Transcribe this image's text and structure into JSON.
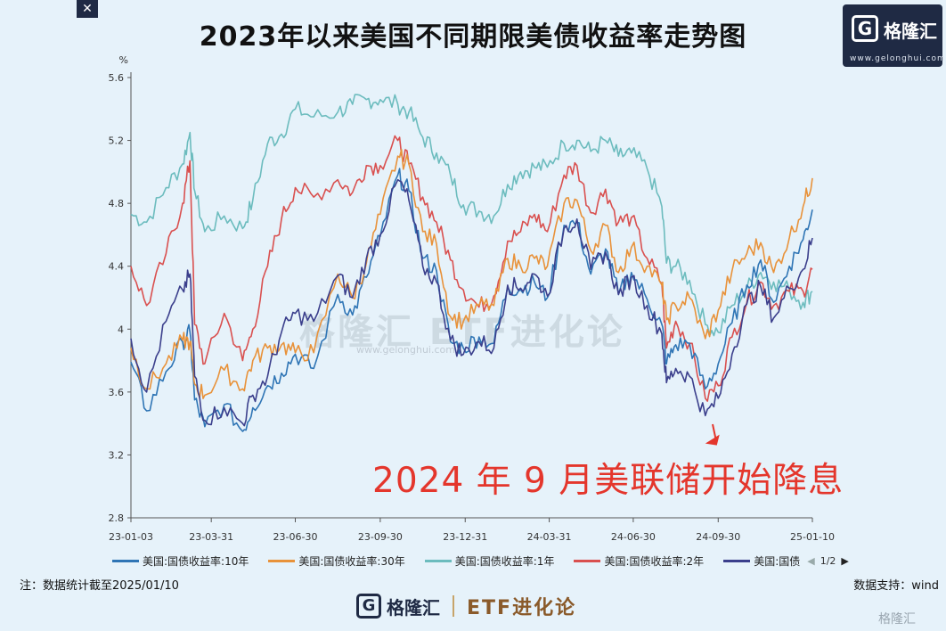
{
  "title": "2023年以来美国不同期限美债收益率走势图",
  "logo": {
    "glyph": "G",
    "name": "格隆汇",
    "url": "www.gelonghui.com"
  },
  "close_label": "✕",
  "annotation": "2024 年 9 月美联储开始降息",
  "note": "注：数据统计截至2025/01/10",
  "support": "数据支持：wind",
  "pager": {
    "text": "1/2",
    "prev": "◀",
    "next": "▶"
  },
  "watermark": {
    "text": "格隆汇 ETF进化论",
    "url": "www.gelonghui.com"
  },
  "footer": {
    "glyph": "G",
    "name": "格隆汇",
    "etf": "ETF进化论"
  },
  "corner_watermark": "格隆汇",
  "chart_data": {
    "type": "line",
    "title": "2023年以来美国不同期限美债收益率走势图",
    "ylabel": "%",
    "ylim": [
      2.8,
      5.6
    ],
    "yticks": [
      "2.8",
      "3.2",
      "3.6",
      "4",
      "4.4",
      "4.8",
      "5.2",
      "5.6"
    ],
    "xticks": [
      "23-01-03",
      "23-03-31",
      "23-06-30",
      "23-09-30",
      "23-12-31",
      "24-03-31",
      "24-06-30",
      "24-09-30",
      "25-01-10"
    ],
    "xrange": [
      "2023-01-03",
      "2025-01-10"
    ],
    "annotation": {
      "text": "2024 年 9 月美联储开始降息",
      "x": "2024-09-16",
      "y": 3.42
    },
    "series": [
      {
        "name": "美国:国债收益率:1年",
        "color": "#6cbcbe",
        "x": [
          "2023-01-03",
          "2023-01-20",
          "2023-02-10",
          "2023-02-28",
          "2023-03-08",
          "2023-03-13",
          "2023-03-24",
          "2023-04-14",
          "2023-05-04",
          "2023-05-15",
          "2023-05-31",
          "2023-06-15",
          "2023-06-30",
          "2023-07-20",
          "2023-08-15",
          "2023-08-31",
          "2023-09-15",
          "2023-09-30",
          "2023-10-19",
          "2023-10-31",
          "2023-11-15",
          "2023-11-30",
          "2023-12-15",
          "2023-12-29",
          "2024-01-15",
          "2024-01-31",
          "2024-02-15",
          "2024-02-29",
          "2024-03-15",
          "2024-03-29",
          "2024-04-16",
          "2024-04-30",
          "2024-05-15",
          "2024-05-31",
          "2024-06-14",
          "2024-06-28",
          "2024-07-15",
          "2024-07-31",
          "2024-08-05",
          "2024-08-15",
          "2024-08-30",
          "2024-09-16",
          "2024-09-30",
          "2024-10-15",
          "2024-10-31",
          "2024-11-15",
          "2024-11-29",
          "2024-12-16",
          "2024-12-31",
          "2025-01-10"
        ],
        "values": [
          4.73,
          4.68,
          4.9,
          5.05,
          5.25,
          4.88,
          4.62,
          4.72,
          4.64,
          4.82,
          5.18,
          5.24,
          5.4,
          5.35,
          5.38,
          5.43,
          5.46,
          5.46,
          5.43,
          5.38,
          5.22,
          5.12,
          4.98,
          4.79,
          4.75,
          4.72,
          4.92,
          5.0,
          5.03,
          5.03,
          5.18,
          5.2,
          5.13,
          5.2,
          5.1,
          5.12,
          5.02,
          4.78,
          4.42,
          4.4,
          4.31,
          4.03,
          3.98,
          4.15,
          4.26,
          4.36,
          4.3,
          4.25,
          4.17,
          4.24
        ]
      },
      {
        "name": "美国:国债收益率:2年",
        "color": "#d9504f",
        "x": [
          "2023-01-03",
          "2023-01-20",
          "2023-02-10",
          "2023-02-28",
          "2023-03-08",
          "2023-03-13",
          "2023-03-24",
          "2023-04-14",
          "2023-05-04",
          "2023-05-15",
          "2023-05-31",
          "2023-06-15",
          "2023-06-30",
          "2023-07-20",
          "2023-08-15",
          "2023-08-31",
          "2023-09-15",
          "2023-09-30",
          "2023-10-19",
          "2023-10-31",
          "2023-11-15",
          "2023-11-30",
          "2023-12-15",
          "2023-12-29",
          "2024-01-15",
          "2024-01-31",
          "2024-02-15",
          "2024-02-29",
          "2024-03-15",
          "2024-03-29",
          "2024-04-16",
          "2024-04-30",
          "2024-05-15",
          "2024-05-31",
          "2024-06-14",
          "2024-06-28",
          "2024-07-15",
          "2024-07-31",
          "2024-08-05",
          "2024-08-15",
          "2024-08-30",
          "2024-09-16",
          "2024-09-30",
          "2024-10-15",
          "2024-10-31",
          "2024-11-15",
          "2024-11-29",
          "2024-12-16",
          "2024-12-31",
          "2025-01-10"
        ],
        "values": [
          4.4,
          4.15,
          4.48,
          4.8,
          5.07,
          4.03,
          3.78,
          4.1,
          3.8,
          4.0,
          4.4,
          4.7,
          4.9,
          4.84,
          4.95,
          4.87,
          5.04,
          5.04,
          5.2,
          5.05,
          4.84,
          4.68,
          4.44,
          4.25,
          4.14,
          4.21,
          4.56,
          4.62,
          4.73,
          4.62,
          4.98,
          5.04,
          4.74,
          4.89,
          4.68,
          4.71,
          4.45,
          4.29,
          3.88,
          4.05,
          3.91,
          3.56,
          3.64,
          3.95,
          4.17,
          4.3,
          4.15,
          4.24,
          4.24,
          4.38
        ]
      },
      {
        "name": "美国:国债收益率:10年",
        "color": "#2f75b5",
        "x": [
          "2023-01-03",
          "2023-01-20",
          "2023-02-10",
          "2023-02-28",
          "2023-03-08",
          "2023-03-13",
          "2023-03-24",
          "2023-04-14",
          "2023-05-04",
          "2023-05-15",
          "2023-05-31",
          "2023-06-15",
          "2023-06-30",
          "2023-07-20",
          "2023-08-15",
          "2023-08-31",
          "2023-09-15",
          "2023-09-30",
          "2023-10-19",
          "2023-10-31",
          "2023-11-15",
          "2023-11-30",
          "2023-12-15",
          "2023-12-29",
          "2024-01-15",
          "2024-01-31",
          "2024-02-15",
          "2024-02-29",
          "2024-03-15",
          "2024-03-29",
          "2024-04-16",
          "2024-04-30",
          "2024-05-15",
          "2024-05-31",
          "2024-06-14",
          "2024-06-28",
          "2024-07-15",
          "2024-07-31",
          "2024-08-05",
          "2024-08-15",
          "2024-08-30",
          "2024-09-16",
          "2024-09-30",
          "2024-10-15",
          "2024-10-31",
          "2024-11-15",
          "2024-11-29",
          "2024-12-16",
          "2024-12-31",
          "2025-01-10"
        ],
        "values": [
          3.79,
          3.48,
          3.73,
          3.92,
          3.98,
          3.55,
          3.38,
          3.52,
          3.35,
          3.5,
          3.64,
          3.72,
          3.84,
          3.75,
          4.22,
          4.09,
          4.33,
          4.59,
          4.98,
          4.88,
          4.45,
          4.37,
          3.92,
          3.88,
          3.95,
          3.91,
          4.27,
          4.25,
          4.3,
          4.2,
          4.66,
          4.68,
          4.35,
          4.51,
          4.22,
          4.36,
          4.19,
          4.03,
          3.78,
          3.9,
          3.91,
          3.62,
          3.78,
          4.04,
          4.28,
          4.44,
          4.17,
          4.4,
          4.57,
          4.76
        ]
      },
      {
        "name": "美国:国债收益率:30年",
        "color": "#e8923a",
        "x": [
          "2023-01-03",
          "2023-01-20",
          "2023-02-10",
          "2023-02-28",
          "2023-03-08",
          "2023-03-13",
          "2023-03-24",
          "2023-04-14",
          "2023-05-04",
          "2023-05-15",
          "2023-05-31",
          "2023-06-15",
          "2023-06-30",
          "2023-07-20",
          "2023-08-15",
          "2023-08-31",
          "2023-09-15",
          "2023-09-30",
          "2023-10-19",
          "2023-10-31",
          "2023-11-15",
          "2023-11-30",
          "2023-12-15",
          "2023-12-29",
          "2024-01-15",
          "2024-01-31",
          "2024-02-15",
          "2024-02-29",
          "2024-03-15",
          "2024-03-29",
          "2024-04-16",
          "2024-04-30",
          "2024-05-15",
          "2024-05-31",
          "2024-06-14",
          "2024-06-28",
          "2024-07-15",
          "2024-07-31",
          "2024-08-05",
          "2024-08-15",
          "2024-08-30",
          "2024-09-16",
          "2024-09-30",
          "2024-10-15",
          "2024-10-31",
          "2024-11-15",
          "2024-11-29",
          "2024-12-16",
          "2024-12-31",
          "2025-01-10"
        ],
        "values": [
          3.88,
          3.62,
          3.78,
          3.93,
          3.92,
          3.65,
          3.58,
          3.74,
          3.62,
          3.8,
          3.88,
          3.9,
          3.85,
          3.85,
          4.35,
          4.2,
          4.42,
          4.73,
          5.1,
          5.05,
          4.62,
          4.54,
          4.08,
          4.05,
          4.15,
          4.15,
          4.45,
          4.4,
          4.45,
          4.4,
          4.8,
          4.82,
          4.5,
          4.66,
          4.36,
          4.52,
          4.4,
          4.28,
          4.06,
          4.15,
          4.2,
          3.94,
          4.12,
          4.37,
          4.48,
          4.55,
          4.36,
          4.58,
          4.78,
          4.96
        ]
      },
      {
        "name": "美国:国债",
        "color": "#3b3f8c",
        "x": [
          "2023-01-03",
          "2023-01-20",
          "2023-02-10",
          "2023-02-28",
          "2023-03-08",
          "2023-03-13",
          "2023-03-24",
          "2023-04-14",
          "2023-05-04",
          "2023-05-15",
          "2023-05-31",
          "2023-06-15",
          "2023-06-30",
          "2023-07-20",
          "2023-08-15",
          "2023-08-31",
          "2023-09-15",
          "2023-09-30",
          "2023-10-19",
          "2023-10-31",
          "2023-11-15",
          "2023-11-30",
          "2023-12-15",
          "2023-12-29",
          "2024-01-15",
          "2024-01-31",
          "2024-02-15",
          "2024-02-29",
          "2024-03-15",
          "2024-03-29",
          "2024-04-16",
          "2024-04-30",
          "2024-05-15",
          "2024-05-31",
          "2024-06-14",
          "2024-06-28",
          "2024-07-15",
          "2024-07-31",
          "2024-08-05",
          "2024-08-15",
          "2024-08-30",
          "2024-09-16",
          "2024-09-30",
          "2024-10-15",
          "2024-10-31",
          "2024-11-15",
          "2024-11-29",
          "2024-12-16",
          "2024-12-31",
          "2025-01-10"
        ],
        "values": [
          3.94,
          3.6,
          4.05,
          4.25,
          4.35,
          3.7,
          3.42,
          3.5,
          3.4,
          3.58,
          3.7,
          3.98,
          4.1,
          4.05,
          4.34,
          4.2,
          4.45,
          4.6,
          4.95,
          4.82,
          4.4,
          4.3,
          3.93,
          3.84,
          3.92,
          3.88,
          4.28,
          4.26,
          4.35,
          4.21,
          4.64,
          4.7,
          4.38,
          4.49,
          4.22,
          4.33,
          4.15,
          3.97,
          3.66,
          3.75,
          3.7,
          3.45,
          3.56,
          3.84,
          4.16,
          4.27,
          4.07,
          4.26,
          4.38,
          4.58
        ]
      }
    ]
  }
}
